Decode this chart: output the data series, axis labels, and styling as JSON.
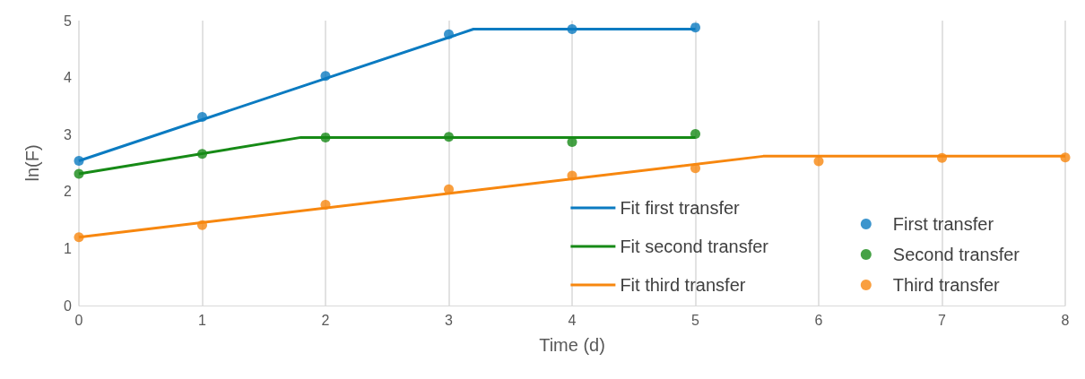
{
  "chart_data": {
    "type": "scatter",
    "xlabel": "Time (d)",
    "ylabel": "ln(F)",
    "xlim": [
      0,
      8
    ],
    "xticks": [
      0,
      1,
      2,
      3,
      4,
      5,
      6,
      7,
      8
    ],
    "ylim": [
      0,
      5
    ],
    "yticks": [
      0,
      1,
      2,
      3,
      4,
      5
    ],
    "grid": "x",
    "legend": "bottom right",
    "series": [
      {
        "name": "Fit first transfer",
        "type": "line",
        "marker": "none",
        "color": "#0b7bc1",
        "x": [
          0,
          3.2,
          5
        ],
        "values": [
          2.54,
          4.85,
          4.85
        ]
      },
      {
        "name": "Fit second transfer",
        "type": "line",
        "marker": "none",
        "color": "#168a16",
        "x": [
          0,
          1.8,
          5
        ],
        "values": [
          2.31,
          2.95,
          2.95
        ]
      },
      {
        "name": "Fit third transfer",
        "type": "line",
        "marker": "none",
        "color": "#f7870f",
        "x": [
          0,
          5.55,
          8
        ],
        "values": [
          1.2,
          2.62,
          2.62
        ]
      },
      {
        "name": "First transfer",
        "marker": "circle",
        "color": "#0b7bc1",
        "x": [
          0,
          1,
          2,
          3,
          4,
          5
        ],
        "values": [
          2.54,
          3.31,
          4.03,
          4.76,
          4.85,
          4.88
        ]
      },
      {
        "name": "Second transfer",
        "marker": "circle",
        "color": "#168a16",
        "x": [
          0,
          1,
          2,
          3,
          4,
          5
        ],
        "values": [
          2.31,
          2.66,
          2.95,
          2.96,
          2.87,
          3.01
        ]
      },
      {
        "name": "Third transfer",
        "marker": "circle",
        "color": "#f7870f",
        "x": [
          0,
          1,
          2,
          3,
          4,
          5,
          6,
          7,
          8
        ],
        "values": [
          1.2,
          1.41,
          1.77,
          2.04,
          2.28,
          2.41,
          2.53,
          2.59,
          2.6
        ]
      }
    ]
  }
}
